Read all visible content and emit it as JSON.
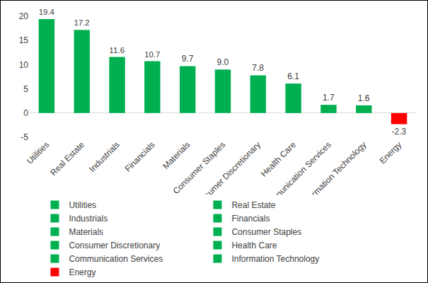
{
  "chart_data": {
    "type": "bar",
    "categories": [
      "Utilities",
      "Real Estate",
      "Industrials",
      "Financials",
      "Materials",
      "Consumer Staples",
      "Consumer Discretionary",
      "Health Care",
      "Communication Services",
      "Information Technology",
      "Energy"
    ],
    "values": [
      19.4,
      17.2,
      11.6,
      10.7,
      9.7,
      9.0,
      7.8,
      6.1,
      1.7,
      1.6,
      -2.3
    ],
    "value_labels": [
      "19.4",
      "17.2",
      "11.6",
      "10.7",
      "9.7",
      "9.0",
      "7.8",
      "6.1",
      "1.7",
      "1.6",
      "-2.3"
    ],
    "colors": [
      "#00b050",
      "#00b050",
      "#00b050",
      "#00b050",
      "#00b050",
      "#00b050",
      "#00b050",
      "#00b050",
      "#00b050",
      "#00b050",
      "#ff0000"
    ],
    "ylim": [
      -5,
      20
    ],
    "yticks": [
      -5,
      0,
      5,
      10,
      15,
      20
    ],
    "grid": false,
    "data_labels": true,
    "legend": "bottom"
  }
}
